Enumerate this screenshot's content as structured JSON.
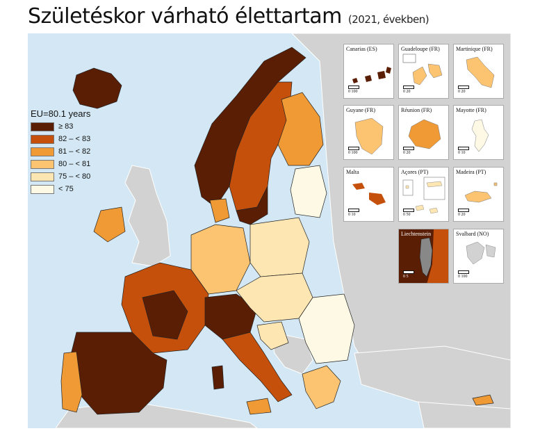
{
  "title": "Születéskor várható élettartam",
  "subtitle": "(2021, években)",
  "legend": {
    "title": "EU=80.1 years",
    "classes": [
      {
        "label": "≥ 83",
        "color": "#5a1e05"
      },
      {
        "label": "82 – < 83",
        "color": "#c4500c"
      },
      {
        "label": "81 – < 82",
        "color": "#f09a36"
      },
      {
        "label": "80 – < 81",
        "color": "#fcc471"
      },
      {
        "label": "75 – < 80",
        "color": "#fde6b2"
      },
      {
        "label": "< 75",
        "color": "#fef9e4"
      }
    ]
  },
  "colors": {
    "sea": "#d3e8f4",
    "non_data": "#d2d2d2",
    "border": "#222222"
  },
  "insets": [
    {
      "label": "Canarias (ES)",
      "scale": "0 100",
      "color": "#5a1e05"
    },
    {
      "label": "Guadeloupe (FR)",
      "scale": "0 20",
      "color": "#fcc471"
    },
    {
      "label": "Martinique (FR)",
      "scale": "0 20",
      "color": "#fcc471"
    },
    {
      "label": "Guyane (FR)",
      "scale": "0 100",
      "color": "#fcc471"
    },
    {
      "label": "Réunion (FR)",
      "scale": "0 20",
      "color": "#f09a36"
    },
    {
      "label": "Mayotte (FR)",
      "scale": "0 10",
      "color": "#fef9e4"
    },
    {
      "label": "Malta",
      "scale": "0 10",
      "color": "#c4500c"
    },
    {
      "label": "Açores (PT)",
      "scale": "0 50",
      "color": "#fde6b2"
    },
    {
      "label": "Madeira (PT)",
      "scale": "0 20",
      "color": "#fcc471"
    },
    {
      "label": "Liechtenstein",
      "scale": "0 5",
      "color": "#5a1e05"
    },
    {
      "label": "Svalbard (NO)",
      "scale": "0 100",
      "color": "#d2d2d2"
    }
  ]
}
